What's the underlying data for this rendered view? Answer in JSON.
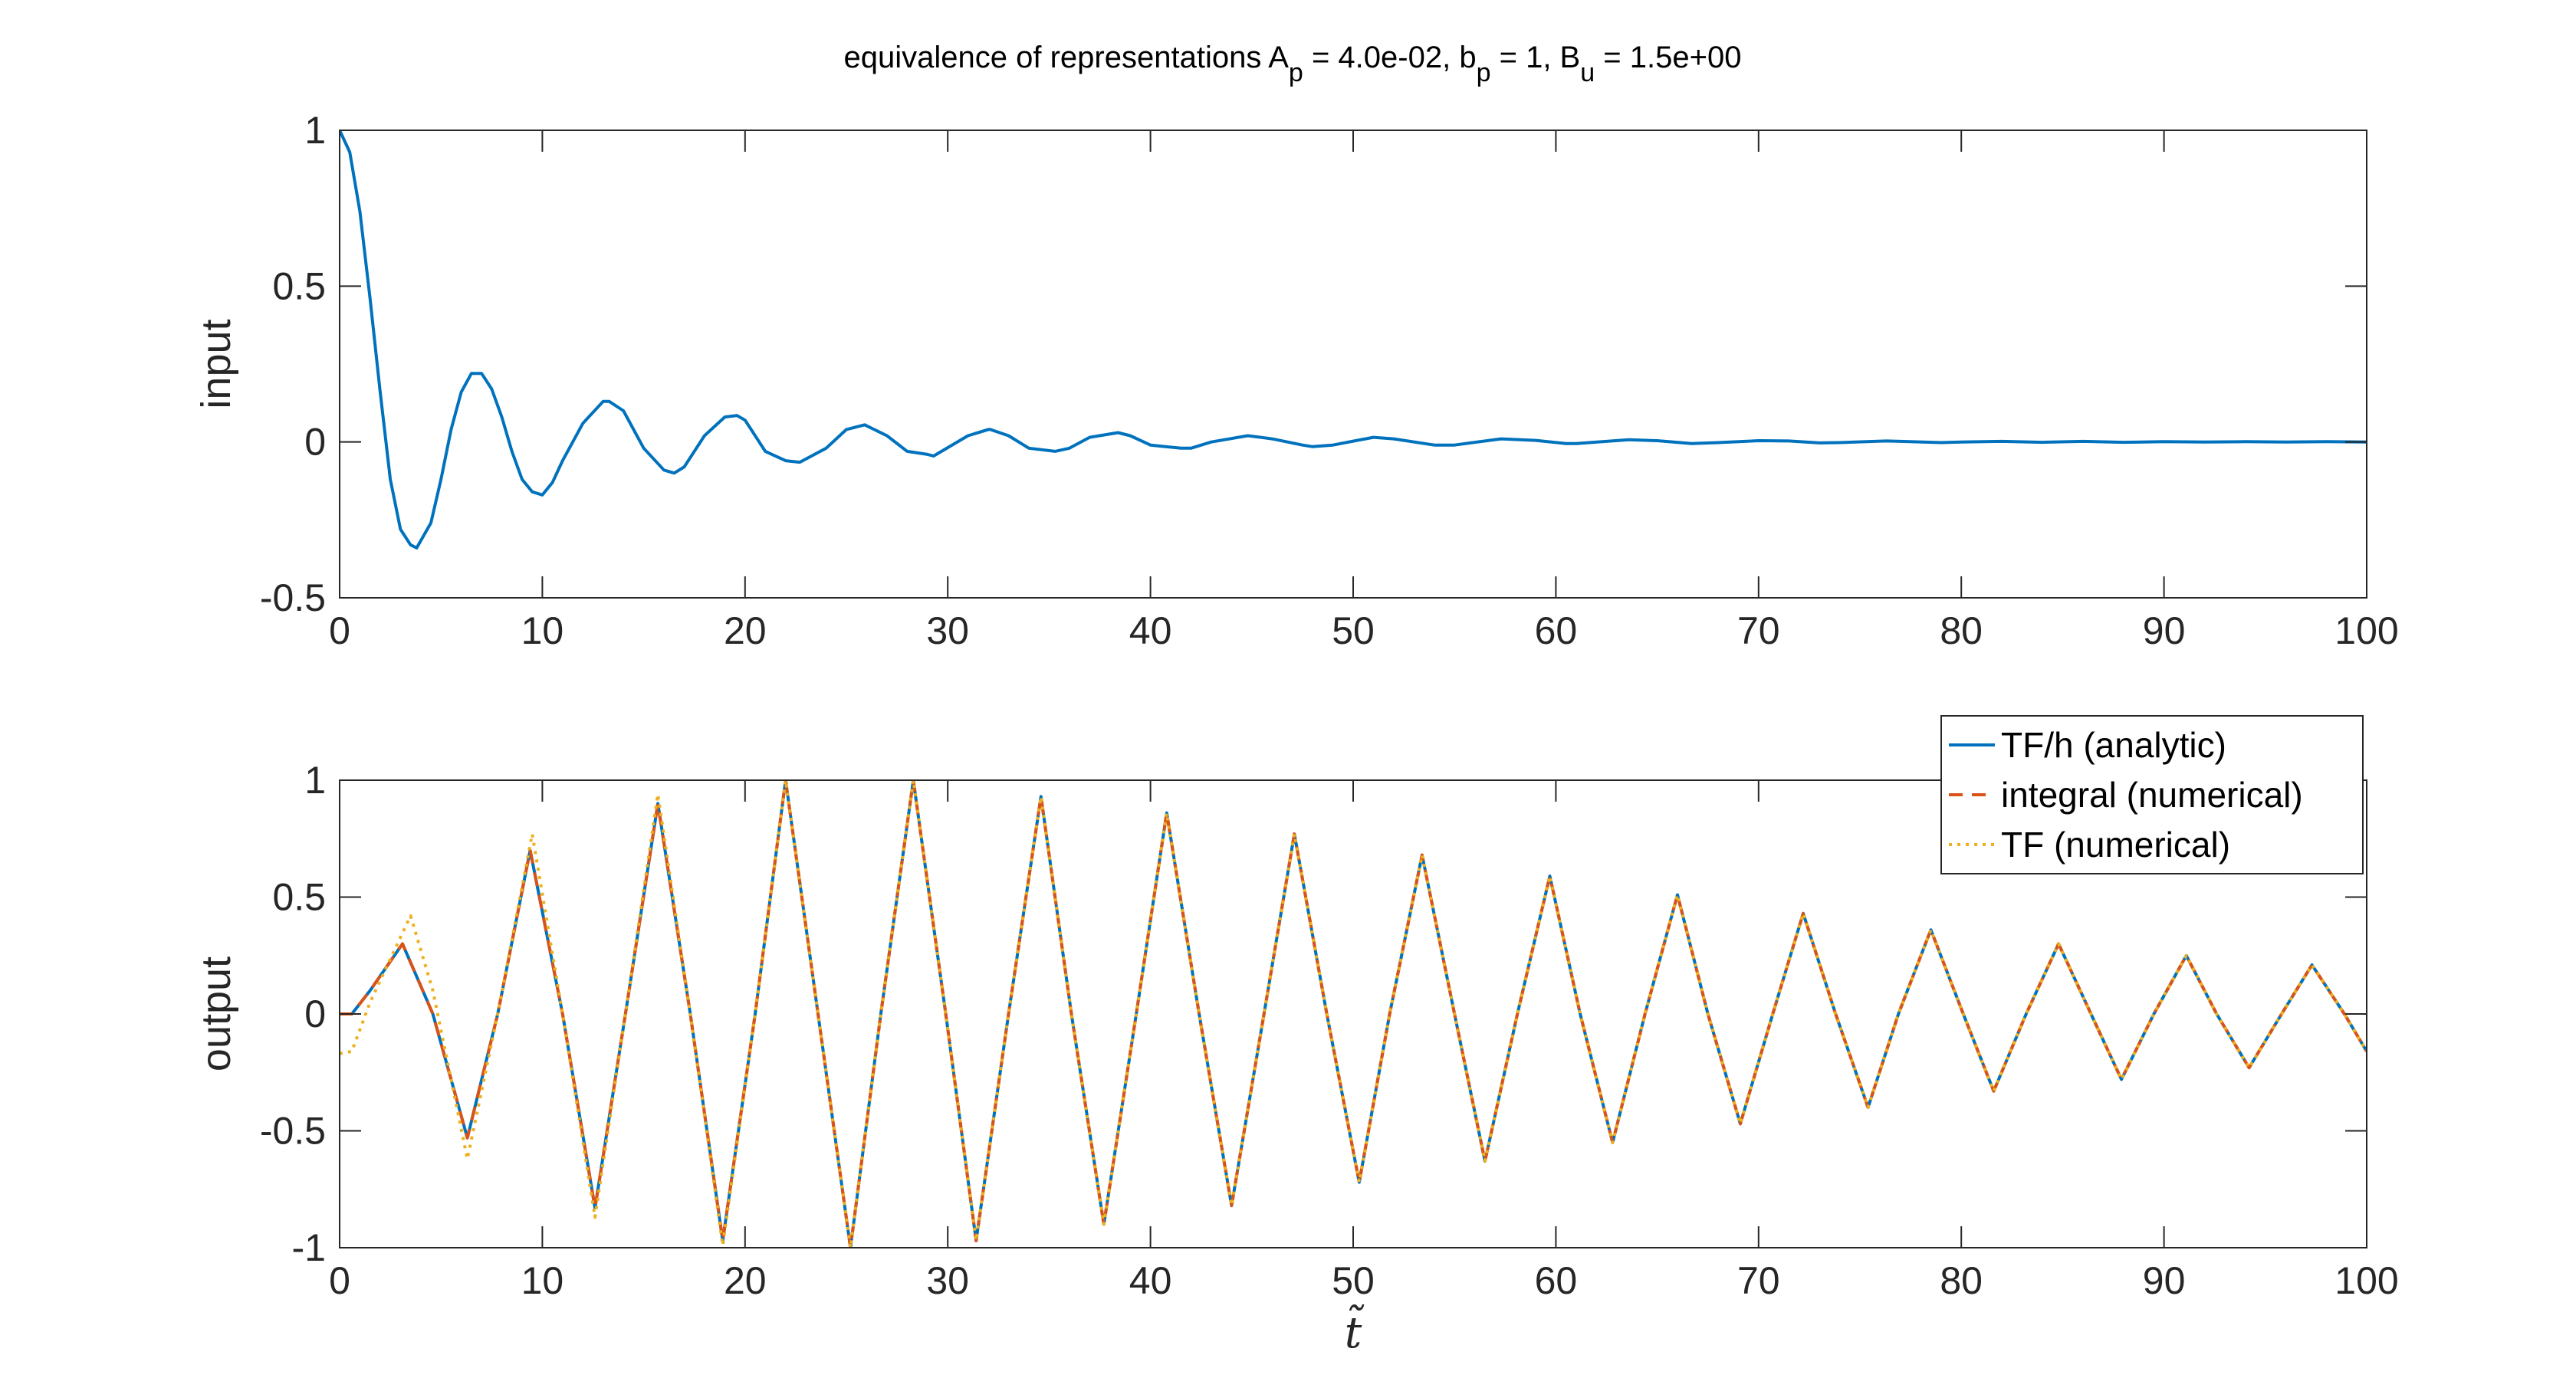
{
  "figure": {
    "title": {
      "prefix": "equivalence of representations A",
      "sub1": "p",
      "mid1": " = 4.0e-02, b",
      "sub2": "p",
      "mid2": " = 1, B",
      "sub3": "u",
      "suffix": " = 1.5e+00"
    }
  },
  "chart_data": [
    {
      "type": "line",
      "panel": "top",
      "ylabel": "input",
      "xlabel": "",
      "xlim": [
        0,
        100
      ],
      "ylim": [
        -0.5,
        1
      ],
      "xticks": [
        "0",
        "10",
        "20",
        "30",
        "40",
        "50",
        "60",
        "70",
        "80",
        "90",
        "100"
      ],
      "yticks": [
        "-0.5",
        "0",
        "0.5",
        "1"
      ],
      "grid": false,
      "series": [
        {
          "color": "#0072BD",
          "style": "solid",
          "x": [
            0,
            0.5,
            1,
            1.5,
            2,
            2.5,
            3,
            3.5,
            3.8,
            4.5,
            5,
            5.5,
            6,
            6.5,
            7,
            7.5,
            8,
            8.5,
            9,
            9.5,
            10,
            10.5,
            11,
            12,
            13,
            13.3,
            14,
            15,
            16,
            16.5,
            17,
            18,
            19,
            19.6,
            20,
            21,
            22,
            22.7,
            24,
            25,
            25.9,
            27,
            28,
            29,
            29.3,
            31,
            32,
            32.1,
            33,
            34,
            35.3,
            36,
            37,
            38.4,
            39,
            40,
            41.5,
            42,
            43,
            44.8,
            46,
            47.5,
            48,
            49,
            51,
            52,
            54,
            55,
            57.3,
            59,
            60.5,
            61,
            63.6,
            65,
            66.7,
            68,
            70,
            71.5,
            73,
            74,
            76.3,
            77,
            79,
            80,
            82,
            84,
            86,
            88,
            90,
            92,
            94,
            96,
            98,
            100
          ],
          "y": [
            1,
            0.93,
            0.74,
            0.46,
            0.16,
            -0.12,
            -0.28,
            -0.33,
            -0.34,
            -0.26,
            -0.12,
            0.04,
            0.16,
            0.22,
            0.22,
            0.17,
            0.08,
            -0.03,
            -0.12,
            -0.16,
            -0.17,
            -0.13,
            -0.06,
            0.06,
            0.13,
            0.13,
            0.1,
            -0.02,
            -0.09,
            -0.1,
            -0.08,
            0.02,
            0.08,
            0.085,
            0.07,
            -0.03,
            -0.06,
            -0.065,
            -0.02,
            0.04,
            0.055,
            0.02,
            -0.03,
            -0.04,
            -0.045,
            0.02,
            0.04,
            0.04,
            0.02,
            -0.02,
            -0.03,
            -0.02,
            0.015,
            0.03,
            0.02,
            -0.01,
            -0.02,
            -0.02,
            0.0,
            0.02,
            0.01,
            -0.01,
            -0.015,
            -0.01,
            0.015,
            0.01,
            -0.01,
            -0.01,
            0.01,
            0.005,
            -0.005,
            -0.005,
            0.007,
            0.004,
            -0.005,
            -0.002,
            0.004,
            0.003,
            -0.003,
            -0.002,
            0.003,
            0.002,
            -0.002,
            0.0,
            0.002,
            -0.001,
            0.002,
            -0.001,
            0.001,
            0.0,
            0.001,
            0.0,
            0.001,
            0.0
          ]
        }
      ]
    },
    {
      "type": "line",
      "panel": "bottom",
      "ylabel": "output",
      "xlabel": "t̃",
      "xlim": [
        0,
        100
      ],
      "ylim": [
        -1,
        1
      ],
      "xticks": [
        "0",
        "10",
        "20",
        "30",
        "40",
        "50",
        "60",
        "70",
        "80",
        "90",
        "100"
      ],
      "yticks": [
        "-1",
        "-0.5",
        "0",
        "0.5",
        "1"
      ],
      "grid": false,
      "legend": "top-right",
      "series": [
        {
          "name": "TF/h (analytic)",
          "color": "#0072BD",
          "style": "solid",
          "x": [
            0,
            0.6,
            1.5,
            3.1,
            4.6,
            6.3,
            7.8,
            9.4,
            11,
            12.6,
            14.1,
            15.7,
            17.3,
            18.9,
            20.5,
            22,
            23.6,
            25.2,
            26.7,
            28.3,
            29.9,
            31.4,
            33,
            34.6,
            36.1,
            37.7,
            39.3,
            40.8,
            42.4,
            44,
            45.6,
            47.1,
            48.7,
            50.3,
            51.8,
            53.4,
            55,
            56.5,
            58.1,
            59.7,
            61.2,
            62.8,
            64.4,
            66,
            67.5,
            69.1,
            70.7,
            72.2,
            73.8,
            75.4,
            76.9,
            78.5,
            80.1,
            81.6,
            83.2,
            84.8,
            86.4,
            87.9,
            89.5,
            91.1,
            92.6,
            94.2,
            95.8,
            97.3,
            98.9,
            100
          ],
          "y": [
            0,
            0.0,
            0.1,
            0.3,
            0.0,
            -0.53,
            0.0,
            0.7,
            0.0,
            -0.83,
            0.0,
            0.9,
            0.0,
            -0.97,
            0.0,
            1.0,
            0.0,
            -1.0,
            0.0,
            1.0,
            0.0,
            -0.97,
            0.0,
            0.93,
            0.0,
            -0.9,
            0.0,
            0.86,
            0.0,
            -0.82,
            0.0,
            0.77,
            0.0,
            -0.72,
            0.0,
            0.68,
            0.0,
            -0.63,
            0.0,
            0.59,
            0.0,
            -0.55,
            0.0,
            0.51,
            0.0,
            -0.47,
            0.0,
            0.43,
            0.0,
            -0.4,
            0.0,
            0.36,
            0.0,
            -0.33,
            0.0,
            0.3,
            0.0,
            -0.28,
            0.0,
            0.25,
            0.0,
            -0.23,
            0.0,
            0.21,
            0.0,
            -0.16
          ]
        },
        {
          "name": "integral (numerical)",
          "color": "#D95319",
          "style": "dashed",
          "x": [
            0,
            0.6,
            1.5,
            3.1,
            4.6,
            6.3,
            7.8,
            9.4,
            11,
            12.6,
            14.1,
            15.7,
            17.3,
            18.9,
            20.5,
            22,
            23.6,
            25.2,
            26.7,
            28.3,
            29.9,
            31.4,
            33,
            34.6,
            36.1,
            37.7,
            39.3,
            40.8,
            42.4,
            44,
            45.6,
            47.1,
            48.7,
            50.3,
            51.8,
            53.4,
            55,
            56.5,
            58.1,
            59.7,
            61.2,
            62.8,
            64.4,
            66,
            67.5,
            69.1,
            70.7,
            72.2,
            73.8,
            75.4,
            76.9,
            78.5,
            80.1,
            81.6,
            83.2,
            84.8,
            86.4,
            87.9,
            89.5,
            91.1,
            92.6,
            94.2,
            95.8,
            97.3,
            98.9,
            100
          ],
          "y": [
            0,
            0.0,
            0.1,
            0.3,
            0.0,
            -0.53,
            0.0,
            0.7,
            0.0,
            -0.83,
            0.0,
            0.9,
            0.0,
            -0.97,
            0.0,
            1.0,
            0.0,
            -1.0,
            0.0,
            1.0,
            0.0,
            -0.97,
            0.0,
            0.93,
            0.0,
            -0.9,
            0.0,
            0.86,
            0.0,
            -0.82,
            0.0,
            0.77,
            0.0,
            -0.72,
            0.0,
            0.68,
            0.0,
            -0.63,
            0.0,
            0.59,
            0.0,
            -0.55,
            0.0,
            0.51,
            0.0,
            -0.47,
            0.0,
            0.43,
            0.0,
            -0.4,
            0.0,
            0.36,
            0.0,
            -0.33,
            0.0,
            0.3,
            0.0,
            -0.28,
            0.0,
            0.25,
            0.0,
            -0.23,
            0.0,
            0.21,
            0.0,
            -0.16
          ]
        },
        {
          "name": "TF (numerical)",
          "color": "#EDB120",
          "style": "dotted",
          "x": [
            0,
            0.6,
            1.5,
            3.5,
            4.6,
            6.3,
            7.8,
            9.5,
            11,
            12.6,
            14.1,
            15.7,
            17.3,
            18.9,
            20.5,
            22,
            23.6,
            25.2,
            26.7,
            28.3,
            29.9,
            31.4,
            33,
            34.6,
            36.1,
            37.7,
            39.3,
            40.8,
            42.4,
            44,
            45.6,
            47.1,
            48.7,
            50.3,
            51.8,
            53.4,
            55,
            56.5,
            58.1,
            59.7,
            61.2,
            62.8,
            64.4,
            66,
            67.5,
            69.1,
            70.7,
            72.2,
            73.8,
            75.4,
            76.9,
            78.5,
            80.1,
            81.6,
            83.2,
            84.8,
            86.4,
            87.9,
            89.5,
            91.1,
            92.6,
            94.2,
            95.8,
            97.3,
            98.9,
            100
          ],
          "y": [
            -0.17,
            -0.16,
            0.05,
            0.42,
            0.1,
            -0.62,
            0.0,
            0.77,
            0.0,
            -0.87,
            0.0,
            0.94,
            0.0,
            -0.99,
            0.0,
            1.0,
            0.0,
            -1.0,
            0.0,
            1.0,
            0.0,
            -0.97,
            0.0,
            0.93,
            0.0,
            -0.9,
            0.0,
            0.86,
            0.0,
            -0.82,
            0.0,
            0.77,
            0.0,
            -0.72,
            0.0,
            0.68,
            0.0,
            -0.63,
            0.0,
            0.59,
            0.0,
            -0.55,
            0.0,
            0.51,
            0.0,
            -0.47,
            0.0,
            0.43,
            0.0,
            -0.4,
            0.0,
            0.36,
            0.0,
            -0.33,
            0.0,
            0.3,
            0.0,
            -0.28,
            0.0,
            0.25,
            0.0,
            -0.23,
            0.0,
            0.21,
            0.0,
            -0.16
          ]
        }
      ]
    }
  ]
}
